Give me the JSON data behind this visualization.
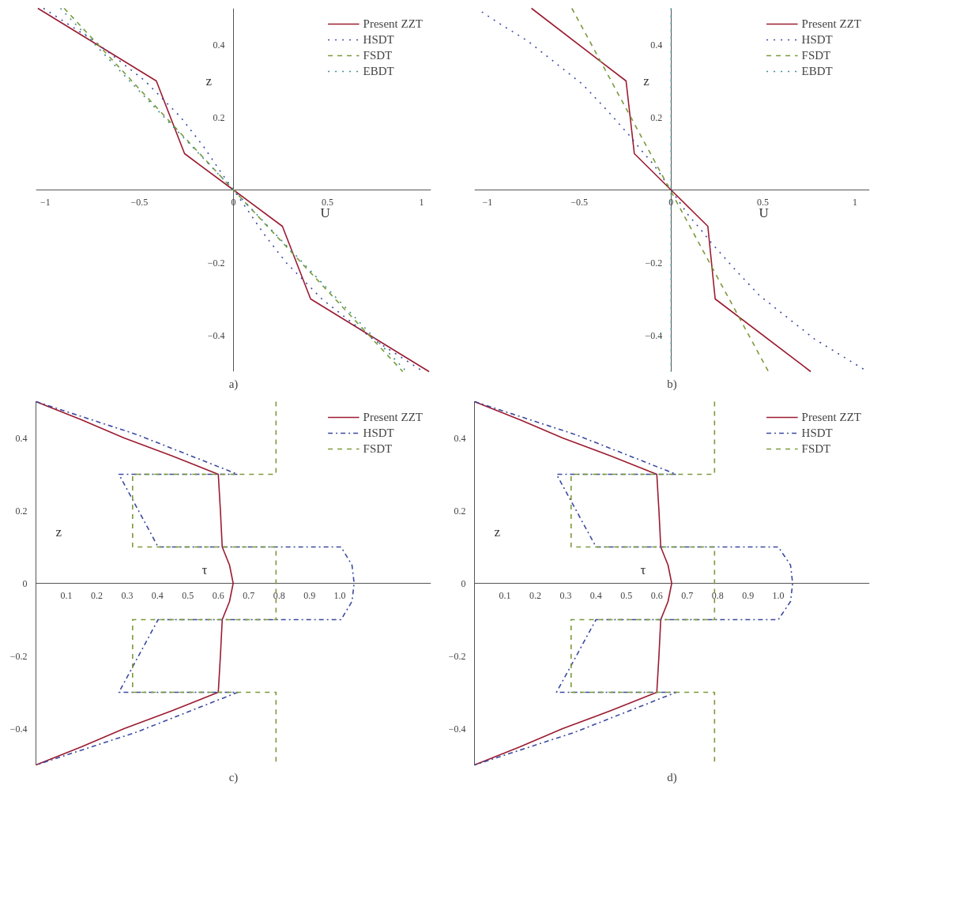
{
  "chart_data": [
    {
      "type": "line",
      "title": "a)",
      "xlabel": "U",
      "ylabel": "z",
      "xlim": [
        -1.05,
        1.05
      ],
      "ylim": [
        -0.5,
        0.5
      ],
      "xticks": [
        -1,
        -0.5,
        0,
        0.5,
        1
      ],
      "yticks": [
        -0.4,
        -0.2,
        0.2,
        0.4
      ],
      "legend": "top right",
      "series": [
        {
          "name": "Present ZZT",
          "color": "#9b1b30",
          "line_style": "solid",
          "x": [
            -1.04,
            -0.41,
            -0.26,
            0,
            0.26,
            0.41,
            1.04
          ],
          "values": [
            0.5,
            0.3,
            0.1,
            0,
            -0.1,
            -0.3,
            -0.5
          ]
        },
        {
          "name": "HSDT",
          "color": "#3b4aa0",
          "line_style": "dotted",
          "x": [
            -1.01,
            -0.74,
            -0.47,
            -0.28,
            -0.16,
            -0.055,
            0,
            0.055,
            0.16,
            0.28,
            0.47,
            0.74,
            1.01
          ],
          "values": [
            0.5,
            0.41,
            0.3,
            0.2,
            0.12,
            0.04,
            0,
            -0.04,
            -0.12,
            -0.2,
            -0.3,
            -0.41,
            -0.5
          ]
        },
        {
          "name": "FSDT",
          "color": "#7a9a3a",
          "line_style": "dashed",
          "x": [
            -0.9,
            0.9
          ],
          "values": [
            0.5,
            -0.5
          ]
        },
        {
          "name": "EBDT",
          "color": "#3a8f8f",
          "line_style": "dotted",
          "x": [
            -0.92,
            0.92
          ],
          "values": [
            0.5,
            -0.5
          ]
        }
      ]
    },
    {
      "type": "line",
      "title": "b)",
      "xlabel": "U",
      "ylabel": "z",
      "xlim": [
        -1.07,
        1.08
      ],
      "ylim": [
        -0.5,
        0.5
      ],
      "xticks": [
        -1,
        -0.5,
        0,
        0.5,
        1
      ],
      "yticks": [
        -0.4,
        -0.2,
        0.2,
        0.4
      ],
      "legend": "top right",
      "series": [
        {
          "name": "Present ZZT",
          "color": "#9b1b30",
          "line_style": "solid",
          "x": [
            -0.76,
            -0.245,
            -0.2,
            0,
            0.2,
            0.24,
            0.76
          ],
          "values": [
            0.5,
            0.3,
            0.1,
            0,
            -0.1,
            -0.3,
            -0.5
          ]
        },
        {
          "name": "HSDT",
          "color": "#3b4aa0",
          "line_style": "dotted",
          "x": [
            -1.03,
            -0.94,
            -0.78,
            -0.63,
            -0.48,
            -0.35,
            -0.22,
            -0.16,
            -0.095,
            0,
            0.095,
            0.16,
            0.22,
            0.35,
            0.48,
            0.63,
            0.78,
            0.94,
            1.07
          ],
          "values": [
            0.49,
            0.46,
            0.41,
            0.35,
            0.29,
            0.22,
            0.146,
            0.108,
            0.07,
            0,
            -0.07,
            -0.108,
            -0.146,
            -0.22,
            -0.29,
            -0.35,
            -0.41,
            -0.46,
            -0.5
          ]
        },
        {
          "name": "FSDT",
          "color": "#7a9a3a",
          "line_style": "dashed",
          "x": [
            -0.54,
            0.53
          ],
          "values": [
            0.5,
            -0.5
          ]
        },
        {
          "name": "EBDT",
          "color": "#3a8f8f",
          "line_style": "dotted",
          "x": [
            0,
            0
          ],
          "values": [
            0.5,
            -0.5
          ]
        }
      ]
    },
    {
      "type": "line",
      "title": "c)",
      "xlabel": "τ",
      "ylabel": "z",
      "xlim": [
        0,
        1.3
      ],
      "ylim": [
        -0.5,
        0.5
      ],
      "xticks": [
        0.1,
        0.2,
        0.3,
        0.4,
        0.5,
        0.6,
        0.7,
        0.8,
        0.9,
        {
          "value": 1,
          "label": "1.0"
        }
      ],
      "yticks": [
        -0.4,
        -0.2,
        0,
        0.2,
        0.4
      ],
      "legend": "top right",
      "series": [
        {
          "name": "Present ZZT",
          "color": "#9b1b30",
          "line_style": "solid",
          "x": [
            0,
            0.15,
            0.29,
            0.45,
            0.6,
            0.607,
            0.613,
            0.637,
            0.649,
            0.637,
            0.613,
            0.607,
            0.6,
            0.45,
            0.29,
            0.15,
            0
          ],
          "values": [
            0.5,
            0.45,
            0.4,
            0.35,
            0.3,
            0.2,
            0.1,
            0.05,
            0,
            -0.05,
            -0.1,
            -0.2,
            -0.3,
            -0.35,
            -0.4,
            -0.45,
            -0.5
          ]
        },
        {
          "name": "HSDT",
          "color": "#3b4aa0",
          "line_style": "dashdot",
          "x": [
            0,
            0.33,
            0.664,
            0.273,
            0.402,
            1.004,
            1.04,
            1.047,
            1.04,
            1.004,
            0.402,
            0.273,
            0.664,
            0.33,
            0
          ],
          "values": [
            0.5,
            0.41,
            0.3,
            0.3,
            0.1,
            0.1,
            0.05,
            0,
            -0.05,
            -0.1,
            -0.1,
            -0.3,
            -0.3,
            -0.41,
            -0.5
          ]
        },
        {
          "name": "FSDT",
          "color": "#7a9a3a",
          "line_style": "dashed",
          "x": [
            0.79,
            0.79,
            0.318,
            0.318,
            0.79,
            0.79,
            0.318,
            0.318,
            0.79,
            0.79
          ],
          "values": [
            0.5,
            0.3,
            0.3,
            0.1,
            0.1,
            -0.1,
            -0.1,
            -0.3,
            -0.3,
            -0.5
          ]
        }
      ]
    },
    {
      "type": "line",
      "title": "d)",
      "xlabel": "τ",
      "ylabel": "z",
      "xlim": [
        0,
        1.3
      ],
      "ylim": [
        -0.5,
        0.5
      ],
      "xticks": [
        0.1,
        0.2,
        0.3,
        0.4,
        0.5,
        0.6,
        0.7,
        0.8,
        0.9,
        {
          "value": 1,
          "label": "1.0"
        }
      ],
      "yticks": [
        -0.4,
        -0.2,
        0,
        0.2,
        0.4
      ],
      "legend": "top right",
      "series": [
        {
          "name": "Present ZZT",
          "color": "#9b1b30",
          "line_style": "solid",
          "x": [
            0,
            0.15,
            0.29,
            0.45,
            0.6,
            0.607,
            0.613,
            0.637,
            0.649,
            0.637,
            0.613,
            0.607,
            0.6,
            0.45,
            0.29,
            0.15,
            0
          ],
          "values": [
            0.5,
            0.45,
            0.4,
            0.35,
            0.3,
            0.2,
            0.1,
            0.05,
            0,
            -0.05,
            -0.1,
            -0.2,
            -0.3,
            -0.35,
            -0.4,
            -0.45,
            -0.5
          ]
        },
        {
          "name": "HSDT",
          "color": "#3b4aa0",
          "line_style": "dashdot",
          "x": [
            0,
            0.33,
            0.664,
            0.27,
            0.4,
            1.0,
            1.04,
            1.047,
            1.04,
            1.0,
            0.4,
            0.27,
            0.664,
            0.33,
            0
          ],
          "values": [
            0.5,
            0.41,
            0.3,
            0.3,
            0.1,
            0.1,
            0.05,
            0,
            -0.05,
            -0.1,
            -0.1,
            -0.3,
            -0.3,
            -0.41,
            -0.5
          ]
        },
        {
          "name": "FSDT",
          "color": "#7a9a3a",
          "line_style": "dashed",
          "x": [
            0.79,
            0.79,
            0.318,
            0.318,
            0.79,
            0.79,
            0.318,
            0.318,
            0.79,
            0.79
          ],
          "values": [
            0.5,
            0.3,
            0.3,
            0.1,
            0.1,
            -0.1,
            -0.1,
            -0.3,
            -0.3,
            -0.5
          ]
        }
      ]
    }
  ]
}
